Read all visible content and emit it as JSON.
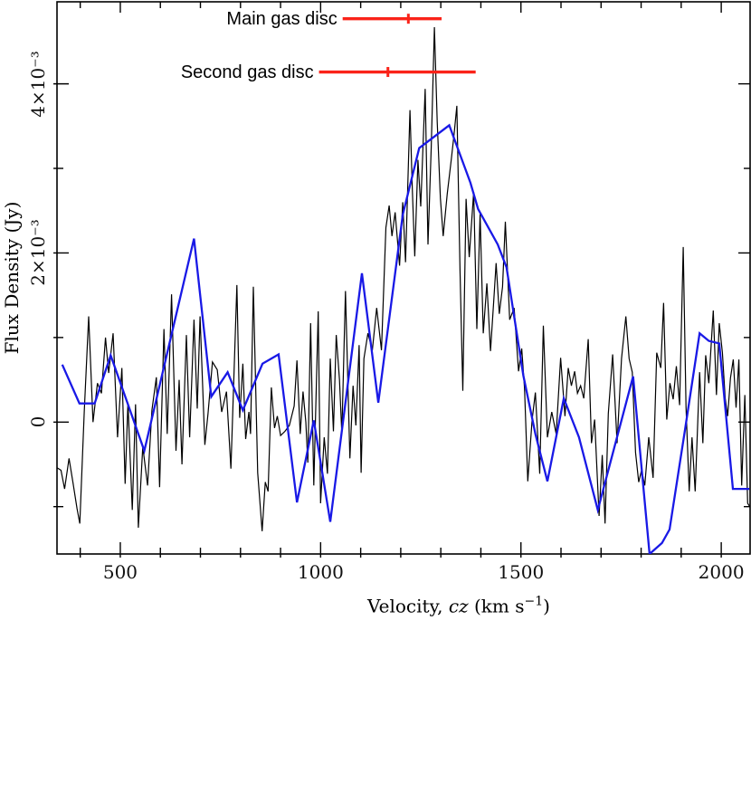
{
  "figure": {
    "background": "#ffffff",
    "ylabel": "Flux Density (Jy)",
    "xlabel_pre": "Velocity, ",
    "xlabel_var": "cz",
    "xlabel_mid": " (km s",
    "xlabel_sup": "−1",
    "xlabel_close": ")"
  },
  "chart_data": {
    "type": "line",
    "title": "",
    "xlabel": "Velocity, cz (km s⁻¹)",
    "ylabel": "Flux Density (Jy)",
    "flux_unit": "values in 10⁻³ Jy",
    "xlim": [
      342,
      2072
    ],
    "ylim": [
      -1.56,
      4.97
    ],
    "grid": false,
    "legend": "none",
    "x_major_ticks": [
      500,
      1000,
      1500,
      2000
    ],
    "x_tick_labels": [
      "500",
      "1000",
      "1500",
      "2000"
    ],
    "x_minor_tick_step": 100,
    "y_ticks": [
      -1,
      0,
      1,
      2,
      3,
      4
    ],
    "y_labeled_ticks": [
      0,
      2,
      4
    ],
    "y_tick_labels": [
      "0",
      "2×10⁻³",
      "4×10⁻³"
    ],
    "series": [
      {
        "name": "spectrum-black",
        "color": "#000000",
        "width": 1.2,
        "points": [
          [
            342,
            -0.54
          ],
          [
            352,
            -0.57
          ],
          [
            361,
            -0.79
          ],
          [
            372,
            -0.43
          ],
          [
            382,
            -0.72
          ],
          [
            392,
            -1.02
          ],
          [
            399,
            -1.2
          ],
          [
            410,
            0.12
          ],
          [
            421,
            1.25
          ],
          [
            432,
            0
          ],
          [
            443,
            0.46
          ],
          [
            453,
            0.34
          ],
          [
            463,
            1
          ],
          [
            471,
            0.58
          ],
          [
            482,
            1.05
          ],
          [
            493,
            -0.18
          ],
          [
            504,
            0.64
          ],
          [
            512,
            -0.73
          ],
          [
            519,
            0.23
          ],
          [
            530,
            -1.04
          ],
          [
            538,
            0.21
          ],
          [
            545,
            -1.25
          ],
          [
            556,
            -0.29
          ],
          [
            568,
            -0.75
          ],
          [
            579,
            0.14
          ],
          [
            590,
            0.53
          ],
          [
            598,
            -0.77
          ],
          [
            609,
            1.1
          ],
          [
            617,
            -0.14
          ],
          [
            628,
            1.51
          ],
          [
            639,
            -0.34
          ],
          [
            647,
            0.5
          ],
          [
            654,
            -0.5
          ],
          [
            665,
            1.03
          ],
          [
            673,
            -0.18
          ],
          [
            684,
            1.21
          ],
          [
            692,
            0.16
          ],
          [
            699,
            1.25
          ],
          [
            711,
            -0.27
          ],
          [
            719,
            0.1
          ],
          [
            730,
            0.71
          ],
          [
            742,
            0.62
          ],
          [
            753,
            0.12
          ],
          [
            765,
            0.36
          ],
          [
            776,
            -0.55
          ],
          [
            784,
            0.6
          ],
          [
            791,
            1.62
          ],
          [
            798,
            0.05
          ],
          [
            806,
            0.69
          ],
          [
            813,
            -0.2
          ],
          [
            821,
            0.12
          ],
          [
            825,
            -0.14
          ],
          [
            832,
            1.6
          ],
          [
            843,
            -0.6
          ],
          [
            854,
            -1.29
          ],
          [
            862,
            -0.71
          ],
          [
            869,
            -0.82
          ],
          [
            877,
            0.41
          ],
          [
            885,
            -0.07
          ],
          [
            892,
            0.07
          ],
          [
            900,
            -0.16
          ],
          [
            911,
            -0.11
          ],
          [
            922,
            -0.04
          ],
          [
            934,
            0.19
          ],
          [
            941,
            0.73
          ],
          [
            949,
            -0.14
          ],
          [
            956,
            0.36
          ],
          [
            963,
            0
          ],
          [
            968,
            -0.48
          ],
          [
            975,
            1.17
          ],
          [
            983,
            -0.75
          ],
          [
            994,
            1.31
          ],
          [
            1000,
            -0.96
          ],
          [
            1009,
            -0.18
          ],
          [
            1017,
            -0.61
          ],
          [
            1024,
            0.75
          ],
          [
            1032,
            -0.11
          ],
          [
            1039,
            1.03
          ],
          [
            1047,
            0.5
          ],
          [
            1053,
            -0.14
          ],
          [
            1062,
            1.55
          ],
          [
            1073,
            -0.43
          ],
          [
            1081,
            0.43
          ],
          [
            1088,
            -0.04
          ],
          [
            1096,
            0.91
          ],
          [
            1101,
            -0.6
          ],
          [
            1108,
            0.75
          ],
          [
            1118,
            1.05
          ],
          [
            1129,
            0.85
          ],
          [
            1140,
            1.35
          ],
          [
            1152,
            0.85
          ],
          [
            1163,
            2.3
          ],
          [
            1171,
            2.56
          ],
          [
            1178,
            2.2
          ],
          [
            1186,
            2.48
          ],
          [
            1197,
            1.85
          ],
          [
            1205,
            2.6
          ],
          [
            1212,
            1.89
          ],
          [
            1223,
            3.69
          ],
          [
            1229,
            2.75
          ],
          [
            1235,
            1.96
          ],
          [
            1243,
            3.1
          ],
          [
            1250,
            2.55
          ],
          [
            1261,
            3.94
          ],
          [
            1268,
            2.1
          ],
          [
            1276,
            3.25
          ],
          [
            1284,
            4.67
          ],
          [
            1291,
            3.55
          ],
          [
            1299,
            2.65
          ],
          [
            1306,
            2.2
          ],
          [
            1316,
            2.7
          ],
          [
            1326,
            3.1
          ],
          [
            1333,
            3.4
          ],
          [
            1340,
            3.74
          ],
          [
            1348,
            1.8
          ],
          [
            1355,
            0.37
          ],
          [
            1363,
            2.64
          ],
          [
            1371,
            1.95
          ],
          [
            1382,
            2.72
          ],
          [
            1390,
            1.1
          ],
          [
            1398,
            2.46
          ],
          [
            1406,
            1.05
          ],
          [
            1415,
            1.64
          ],
          [
            1424,
            0.84
          ],
          [
            1432,
            1.42
          ],
          [
            1438,
            1.88
          ],
          [
            1446,
            1.28
          ],
          [
            1454,
            1.6
          ],
          [
            1461,
            2.37
          ],
          [
            1472,
            1.21
          ],
          [
            1483,
            1.35
          ],
          [
            1494,
            0.6
          ],
          [
            1502,
            0.87
          ],
          [
            1509,
            0.4
          ],
          [
            1517,
            -0.7
          ],
          [
            1528,
            0.03
          ],
          [
            1536,
            0.35
          ],
          [
            1547,
            -0.61
          ],
          [
            1556,
            1.14
          ],
          [
            1566,
            -0.18
          ],
          [
            1577,
            0.12
          ],
          [
            1588,
            -0.14
          ],
          [
            1599,
            0.76
          ],
          [
            1610,
            0.07
          ],
          [
            1618,
            0.64
          ],
          [
            1626,
            0.43
          ],
          [
            1634,
            0.6
          ],
          [
            1641,
            0.34
          ],
          [
            1649,
            0.43
          ],
          [
            1657,
            0.28
          ],
          [
            1668,
            0.98
          ],
          [
            1676,
            -0.25
          ],
          [
            1684,
            0.03
          ],
          [
            1695,
            -1.11
          ],
          [
            1703,
            -0.39
          ],
          [
            1710,
            -1.2
          ],
          [
            1718,
            0.1
          ],
          [
            1729,
            0.8
          ],
          [
            1740,
            -0.25
          ],
          [
            1751,
            0.75
          ],
          [
            1762,
            1.25
          ],
          [
            1770,
            0.75
          ],
          [
            1778,
            0.59
          ],
          [
            1786,
            -0.36
          ],
          [
            1794,
            -0.71
          ],
          [
            1801,
            -0.57
          ],
          [
            1809,
            -0.75
          ],
          [
            1819,
            -0.18
          ],
          [
            1830,
            -0.66
          ],
          [
            1839,
            0.82
          ],
          [
            1849,
            0.64
          ],
          [
            1856,
            1.41
          ],
          [
            1864,
            0.03
          ],
          [
            1872,
            0.46
          ],
          [
            1880,
            0.27
          ],
          [
            1888,
            0.66
          ],
          [
            1896,
            0.2
          ],
          [
            1905,
            2.07
          ],
          [
            1912,
            0.17
          ],
          [
            1920,
            -0.82
          ],
          [
            1927,
            -0.18
          ],
          [
            1935,
            -0.82
          ],
          [
            1946,
            0.59
          ],
          [
            1954,
            -0.25
          ],
          [
            1961,
            0.79
          ],
          [
            1969,
            0.46
          ],
          [
            1980,
            1.32
          ],
          [
            1988,
            0.32
          ],
          [
            1995,
            1.17
          ],
          [
            2003,
            0.82
          ],
          [
            2010,
            0.28
          ],
          [
            2016,
            0.07
          ],
          [
            2023,
            0.52
          ],
          [
            2030,
            0.74
          ],
          [
            2037,
            0.17
          ],
          [
            2044,
            0.74
          ],
          [
            2051,
            -0.75
          ],
          [
            2059,
            0.32
          ],
          [
            2066,
            -0.96
          ],
          [
            2070,
            -0.99
          ]
        ]
      },
      {
        "name": "spectrum-blue",
        "color": "#1919e6",
        "width": 2.3,
        "points": [
          [
            355,
            0.68
          ],
          [
            398,
            0.22
          ],
          [
            436,
            0.22
          ],
          [
            476,
            0.79
          ],
          [
            560,
            -0.34
          ],
          [
            684,
            2.17
          ],
          [
            727,
            0.3
          ],
          [
            768,
            0.59
          ],
          [
            806,
            0.14
          ],
          [
            855,
            0.69
          ],
          [
            895,
            0.8
          ],
          [
            941,
            -0.95
          ],
          [
            983,
            0.02
          ],
          [
            1024,
            -1.18
          ],
          [
            1103,
            1.76
          ],
          [
            1144,
            0.23
          ],
          [
            1205,
            2.45
          ],
          [
            1246,
            3.24
          ],
          [
            1321,
            3.51
          ],
          [
            1374,
            2.83
          ],
          [
            1393,
            2.52
          ],
          [
            1442,
            2.1
          ],
          [
            1464,
            1.83
          ],
          [
            1506,
            0.55
          ],
          [
            1536,
            -0.14
          ],
          [
            1566,
            -0.7
          ],
          [
            1607,
            0.28
          ],
          [
            1645,
            -0.18
          ],
          [
            1692,
            -1.04
          ],
          [
            1780,
            0.54
          ],
          [
            1821,
            -1.56
          ],
          [
            1852,
            -1.43
          ],
          [
            1871,
            -1.27
          ],
          [
            1909,
            -0.11
          ],
          [
            1946,
            1.05
          ],
          [
            1969,
            0.96
          ],
          [
            1995,
            0.93
          ],
          [
            2029,
            -0.79
          ],
          [
            2070,
            -0.79
          ]
        ]
      }
    ],
    "annotations": [
      {
        "label": "Main gas disc",
        "v_min": 1055,
        "v_max": 1302,
        "v_center": 1219,
        "flux": 4.77,
        "color": "#fa2319"
      },
      {
        "label": "Second gas disc",
        "v_min": 996,
        "v_max": 1387,
        "v_center": 1168,
        "flux": 4.14,
        "color": "#fa2319"
      }
    ]
  }
}
